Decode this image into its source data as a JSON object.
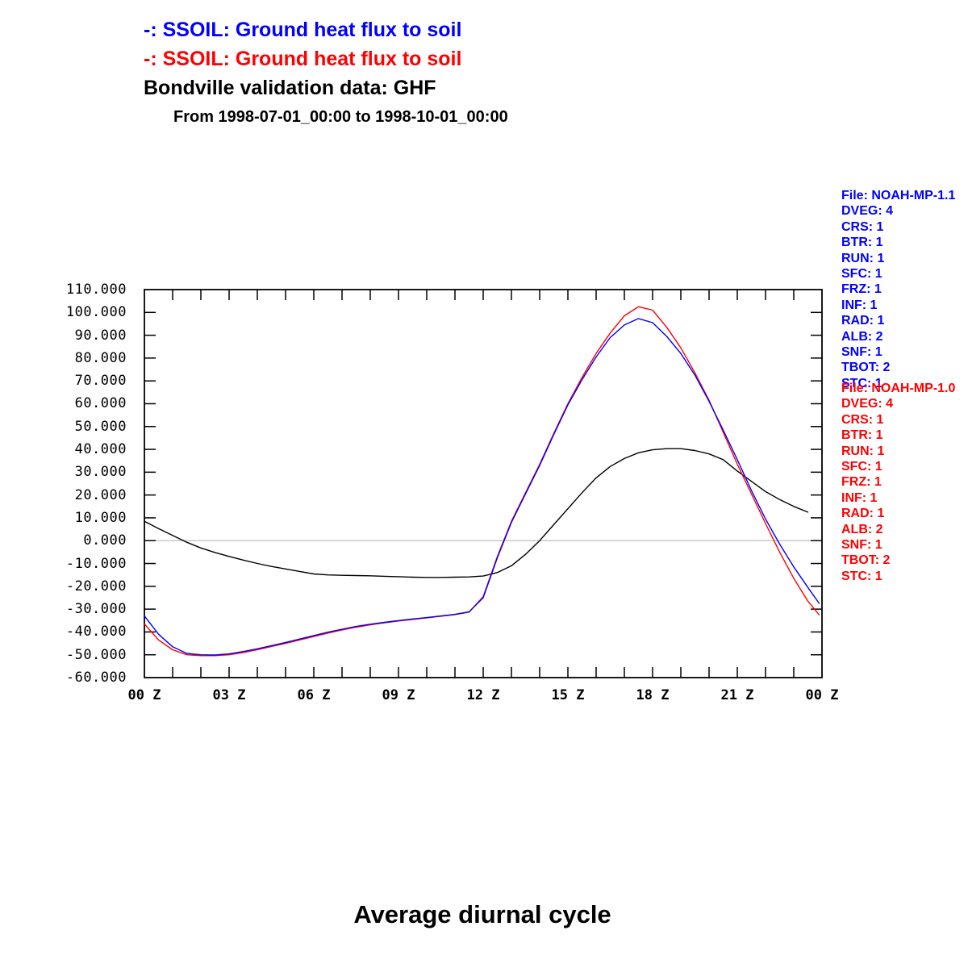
{
  "titles": {
    "line1": "-: SSOIL: Ground heat flux to soil",
    "line2": "-: SSOIL: Ground heat flux to soil",
    "line3": "Bondville validation data: GHF",
    "subtitle": "From 1998-07-01_00:00 to 1998-10-01_00:00"
  },
  "bottom_title": "Average diurnal cycle",
  "colors": {
    "model_1_1": "#0000ff",
    "model_1_0": "#ff0000",
    "validation": "#000000",
    "zero_line": "#bebebe",
    "frame": "#000000"
  },
  "legends": [
    {
      "color": "#0000ff",
      "lines": [
        "File: NOAH-MP-1.1",
        "DVEG: 4",
        "CRS: 1",
        "BTR: 1",
        "RUN: 1",
        "SFC: 1",
        "FRZ: 1",
        "INF: 1",
        "RAD: 1",
        "ALB: 2",
        "SNF: 1",
        "TBOT: 2",
        "STC: 1"
      ]
    },
    {
      "color": "#ff0000",
      "lines": [
        "File: NOAH-MP-1.0",
        "DVEG: 4",
        "CRS: 1",
        "BTR: 1",
        "RUN: 1",
        "SFC: 1",
        "FRZ: 1",
        "INF: 1",
        "RAD: 1",
        "ALB: 2",
        "SNF: 1",
        "TBOT: 2",
        "STC: 1"
      ]
    }
  ],
  "chart_data": {
    "type": "line",
    "title": "Average diurnal cycle",
    "xlabel": "",
    "ylabel": "",
    "x_axis": {
      "unit": "hour (Z)",
      "range_hours": [
        0,
        24
      ],
      "labeled_hours": [
        0,
        3,
        6,
        9,
        12,
        15,
        18,
        21,
        24
      ],
      "tick_labels": [
        "00 Z",
        "03 Z",
        "06 Z",
        "09 Z",
        "12 Z",
        "15 Z",
        "18 Z",
        "21 Z",
        "00 Z"
      ],
      "minor_tick_every_hours": 1
    },
    "y_axis": {
      "range": [
        -60,
        110
      ],
      "tick_values": [
        110,
        100,
        90,
        80,
        70,
        60,
        50,
        40,
        30,
        20,
        10,
        0,
        -10,
        -20,
        -30,
        -40,
        -50,
        -60
      ],
      "tick_labels": [
        "110.000",
        "100.000",
        "90.000",
        "80.000",
        "70.000",
        "60.000",
        "50.000",
        "40.000",
        "30.000",
        "20.000",
        "10.000",
        "0.000",
        "-10.000",
        "-20.000",
        "-30.000",
        "-40.000",
        "-50.000",
        "-60.000"
      ]
    },
    "zero_reference_line": 0,
    "grid": false,
    "legend_position": "right",
    "series": [
      {
        "name": "SSOIL: Ground heat flux to soil (NOAH-MP-1.1)",
        "color": "#0000ff",
        "x": [
          0,
          0.5,
          1,
          1.5,
          2,
          2.5,
          3,
          3.5,
          4,
          4.5,
          5,
          5.5,
          6,
          6.5,
          7,
          7.5,
          8,
          8.5,
          9,
          9.5,
          10,
          10.5,
          11,
          11.5,
          12,
          12.5,
          13,
          13.5,
          14,
          14.5,
          15,
          15.5,
          16,
          16.5,
          17,
          17.5,
          18,
          18.5,
          19,
          19.5,
          20,
          20.5,
          21,
          21.5,
          22,
          22.5,
          23,
          23.5,
          23.9
        ],
        "y": [
          -33,
          -41,
          -46.5,
          -49.4,
          -50,
          -50.1,
          -49.6,
          -48.6,
          -47.4,
          -46,
          -44.6,
          -43.1,
          -41.6,
          -40.1,
          -38.8,
          -37.6,
          -36.6,
          -35.8,
          -35,
          -34.3,
          -33.7,
          -33,
          -32.3,
          -31.2,
          -25,
          -7.5,
          8,
          20.5,
          33,
          46.5,
          59.5,
          70.5,
          80.5,
          89,
          94.5,
          97.3,
          95.5,
          89.5,
          82,
          72.5,
          61,
          48.5,
          35.5,
          22,
          9.5,
          -1.5,
          -11.5,
          -20.5,
          -27.5
        ]
      },
      {
        "name": "SSOIL: Ground heat flux to soil (NOAH-MP-1.0)",
        "color": "#ff0000",
        "x": [
          0,
          0.5,
          1,
          1.5,
          2,
          2.5,
          3,
          3.5,
          4,
          4.5,
          5,
          5.5,
          6,
          6.5,
          7,
          7.5,
          8,
          8.5,
          9,
          9.5,
          10,
          10.5,
          11,
          11.5,
          12,
          12.5,
          13,
          13.5,
          14,
          14.5,
          15,
          15.5,
          16,
          16.5,
          17,
          17.5,
          18,
          18.5,
          19,
          19.5,
          20,
          20.5,
          21,
          21.5,
          22,
          22.5,
          23,
          23.5,
          23.9
        ],
        "y": [
          -36.5,
          -43.5,
          -47.8,
          -50,
          -50.4,
          -50.4,
          -50,
          -49,
          -47.8,
          -46.4,
          -45,
          -43.5,
          -42,
          -40.5,
          -39.1,
          -37.9,
          -36.9,
          -36,
          -35.2,
          -34.5,
          -33.8,
          -33.1,
          -32.4,
          -31.3,
          -24.5,
          -7,
          8.5,
          21,
          33.5,
          47,
          60,
          71.5,
          82,
          91,
          98.5,
          102.5,
          101,
          93.5,
          84.5,
          73.5,
          61.5,
          47.5,
          33.5,
          20.5,
          7.5,
          -5,
          -16.5,
          -26.5,
          -32.5
        ]
      },
      {
        "name": "Bondville validation data: GHF",
        "color": "#000000",
        "x": [
          0,
          0.5,
          1,
          1.5,
          2,
          2.5,
          3,
          3.5,
          4,
          4.5,
          5,
          5.5,
          6,
          6.5,
          7,
          7.5,
          8,
          8.5,
          9,
          9.5,
          10,
          10.5,
          11,
          11.5,
          12,
          12.5,
          13,
          13.5,
          14,
          14.5,
          15,
          15.5,
          16,
          16.5,
          17,
          17.5,
          18,
          18.5,
          19,
          19.5,
          20,
          20.5,
          21,
          21.5,
          22,
          22.5,
          23,
          23.5
        ],
        "y": [
          8.5,
          5.3,
          2.3,
          -0.7,
          -3.2,
          -5.2,
          -6.9,
          -8.5,
          -10,
          -11.3,
          -12.4,
          -13.5,
          -14.6,
          -15,
          -15.2,
          -15.3,
          -15.4,
          -15.6,
          -15.8,
          -16,
          -16.1,
          -16.1,
          -16,
          -15.9,
          -15.5,
          -14,
          -11,
          -6,
          0,
          7,
          14,
          21,
          27.5,
          32.5,
          36,
          38.5,
          39.8,
          40.3,
          40.3,
          39.5,
          38,
          35.5,
          30.5,
          26,
          21.5,
          18,
          15,
          12.5
        ]
      }
    ]
  }
}
